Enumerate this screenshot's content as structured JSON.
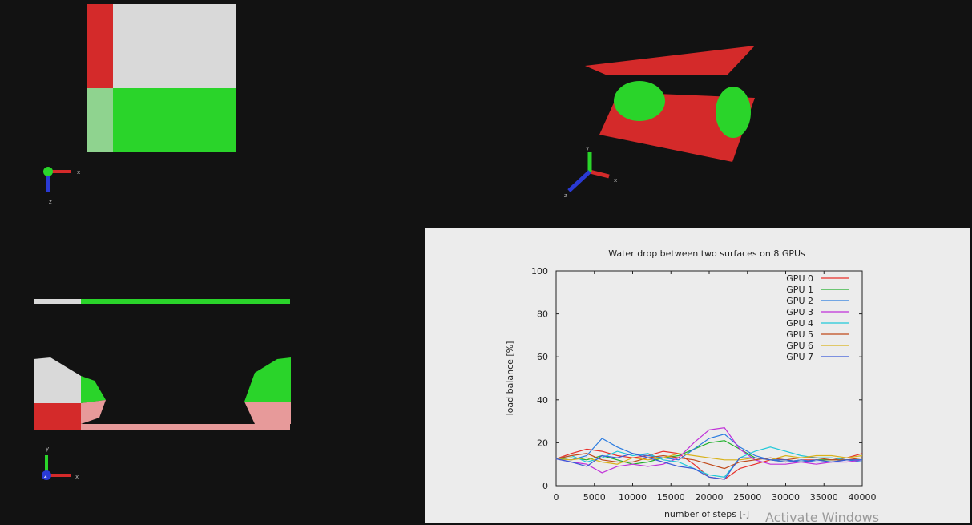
{
  "colors": {
    "background": "#121212",
    "red": "#d42a2a",
    "green": "#2ad42a",
    "white": "#d9d9d9",
    "pink": "#e79a9a",
    "chart_bg": "#ececec"
  },
  "views": {
    "top_left": {
      "axis_labels": [
        "x",
        "z"
      ]
    },
    "top_right": {
      "axis_labels": [
        "x",
        "y",
        "z"
      ]
    },
    "bottom_left": {
      "axis_labels": [
        "x",
        "y",
        "z"
      ]
    }
  },
  "watermark": "Activate Windows",
  "chart_data": {
    "type": "line",
    "title": "Water drop between two surfaces on 8 GPUs",
    "xlabel": "number of steps [-]",
    "ylabel": "load balance [%]",
    "xlim": [
      0,
      40000
    ],
    "ylim": [
      0,
      100
    ],
    "xticks": [
      0,
      5000,
      10000,
      15000,
      20000,
      25000,
      30000,
      35000,
      40000
    ],
    "yticks": [
      0,
      20,
      40,
      60,
      80,
      100
    ],
    "grid": false,
    "legend_position": "top-right",
    "x": [
      0,
      2000,
      4000,
      6000,
      8000,
      10000,
      12000,
      14000,
      16000,
      18000,
      20000,
      22000,
      24000,
      26000,
      28000,
      30000,
      32000,
      34000,
      36000,
      38000,
      40000
    ],
    "series": [
      {
        "name": "GPU 0",
        "color": "#e8302a",
        "values": [
          12.5,
          15,
          17,
          16,
          14,
          13,
          14,
          16,
          15,
          10,
          4,
          3,
          8,
          10,
          12,
          11,
          12,
          12,
          12,
          13,
          15
        ]
      },
      {
        "name": "GPU 1",
        "color": "#1fb02b",
        "values": [
          12.5,
          13,
          12,
          14,
          12,
          10,
          11,
          13,
          14,
          17,
          20,
          21,
          17,
          13,
          12,
          12,
          11,
          12,
          12,
          12,
          12
        ]
      },
      {
        "name": "GPU 2",
        "color": "#2a7be0",
        "values": [
          12.5,
          12,
          14,
          22,
          18,
          15,
          14,
          13,
          12,
          17,
          22,
          24,
          18,
          14,
          12,
          11,
          12,
          11,
          11,
          12,
          11
        ]
      },
      {
        "name": "GPU 3",
        "color": "#c030d8",
        "values": [
          12.5,
          11,
          10,
          6,
          9,
          10,
          9,
          10,
          13,
          20,
          26,
          27,
          17,
          12,
          10,
          10,
          11,
          10,
          11,
          11,
          12
        ]
      },
      {
        "name": "GPU 4",
        "color": "#20c8d8",
        "values": [
          12.5,
          14,
          11,
          13,
          16,
          14,
          15,
          12,
          11,
          8,
          5,
          4,
          13,
          16,
          18,
          16,
          14,
          13,
          13,
          12,
          12
        ]
      },
      {
        "name": "GPU 5",
        "color": "#c04a1a",
        "values": [
          12.5,
          14,
          15,
          12,
          11,
          11,
          13,
          14,
          13,
          12,
          10,
          8,
          11,
          12,
          13,
          12,
          13,
          13,
          12,
          12,
          13
        ]
      },
      {
        "name": "GPU 6",
        "color": "#d8b21a",
        "values": [
          12.5,
          12,
          13,
          11,
          10,
          13,
          12,
          13,
          15,
          14,
          13,
          12,
          12,
          13,
          12,
          14,
          13,
          14,
          14,
          13,
          14
        ]
      },
      {
        "name": "GPU 7",
        "color": "#3a5ad8",
        "values": [
          12.5,
          11,
          9,
          14,
          13,
          15,
          13,
          11,
          9,
          8,
          4,
          3,
          13,
          13,
          12,
          12,
          11,
          12,
          11,
          12,
          12
        ]
      }
    ]
  }
}
